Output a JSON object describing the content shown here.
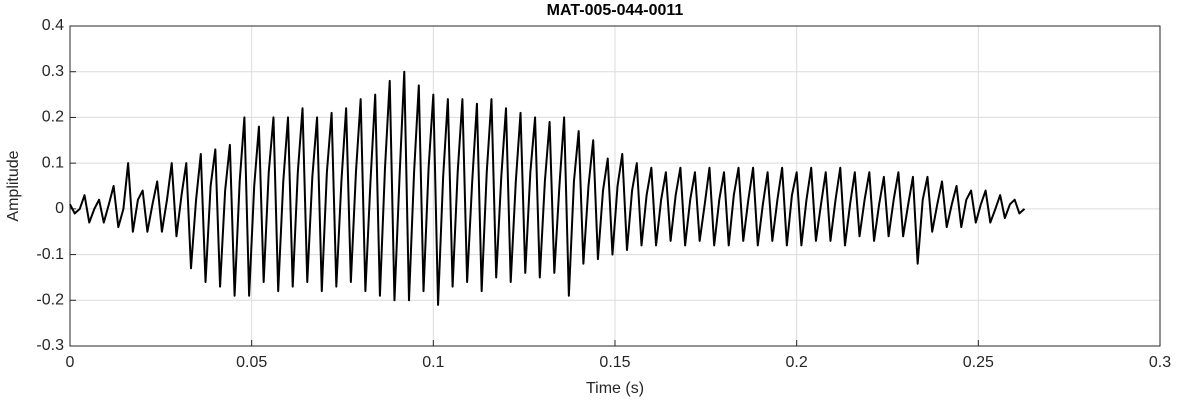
{
  "chart_data": {
    "type": "line",
    "title": "MAT-005-044-0011",
    "xlabel": "Time (s)",
    "ylabel": "Amplitude",
    "xlim": [
      0,
      0.3
    ],
    "ylim": [
      -0.3,
      0.4
    ],
    "xticks": [
      0,
      0.05,
      0.1,
      0.15,
      0.2,
      0.25,
      0.3
    ],
    "yticks": [
      -0.3,
      -0.2,
      -0.1,
      0,
      0.1,
      0.2,
      0.3,
      0.4
    ],
    "grid": true,
    "series": [
      {
        "color": "#000000",
        "x": [
          0,
          0.0013,
          0.0027,
          0.004,
          0.0053,
          0.0067,
          0.008,
          0.0093,
          0.0107,
          0.012,
          0.0133,
          0.0147,
          0.016,
          0.0173,
          0.0187,
          0.02,
          0.0213,
          0.0227,
          0.024,
          0.0253,
          0.0267,
          0.028,
          0.0293,
          0.0307,
          0.032,
          0.0333,
          0.0347,
          0.036,
          0.0373,
          0.0387,
          0.04,
          0.0413,
          0.0427,
          0.044,
          0.0453,
          0.0467,
          0.048,
          0.0493,
          0.0507,
          0.052,
          0.0533,
          0.0547,
          0.056,
          0.0573,
          0.0587,
          0.06,
          0.0613,
          0.0627,
          0.064,
          0.0653,
          0.0667,
          0.068,
          0.0693,
          0.0707,
          0.072,
          0.0733,
          0.0747,
          0.076,
          0.0773,
          0.0787,
          0.08,
          0.0813,
          0.0827,
          0.084,
          0.0853,
          0.0867,
          0.088,
          0.0893,
          0.0907,
          0.092,
          0.0933,
          0.0947,
          0.096,
          0.0973,
          0.0987,
          0.1,
          0.1013,
          0.1027,
          0.104,
          0.1053,
          0.1067,
          0.108,
          0.1093,
          0.1107,
          0.112,
          0.1133,
          0.1147,
          0.116,
          0.1173,
          0.1187,
          0.12,
          0.1213,
          0.1227,
          0.124,
          0.1253,
          0.1267,
          0.128,
          0.1293,
          0.1307,
          0.132,
          0.1333,
          0.1347,
          0.136,
          0.1373,
          0.1387,
          0.14,
          0.1413,
          0.1427,
          0.144,
          0.1453,
          0.1467,
          0.148,
          0.1493,
          0.1507,
          0.152,
          0.1533,
          0.1547,
          0.156,
          0.1573,
          0.1587,
          0.16,
          0.1613,
          0.1627,
          0.164,
          0.1653,
          0.1667,
          0.168,
          0.1693,
          0.1707,
          0.172,
          0.1733,
          0.1747,
          0.176,
          0.1773,
          0.1787,
          0.18,
          0.1813,
          0.1827,
          0.184,
          0.1853,
          0.1867,
          0.188,
          0.1893,
          0.1907,
          0.192,
          0.1933,
          0.1947,
          0.196,
          0.1973,
          0.1987,
          0.2,
          0.2013,
          0.2027,
          0.204,
          0.2053,
          0.2067,
          0.208,
          0.2093,
          0.2107,
          0.212,
          0.2133,
          0.2147,
          0.216,
          0.2173,
          0.2187,
          0.22,
          0.2213,
          0.2227,
          0.224,
          0.2253,
          0.2267,
          0.228,
          0.2293,
          0.2307,
          0.232,
          0.2333,
          0.2347,
          0.236,
          0.2373,
          0.2387,
          0.24,
          0.2413,
          0.2427,
          0.244,
          0.2453,
          0.2467,
          0.248,
          0.2493,
          0.2507,
          0.252,
          0.2533,
          0.2547,
          0.256,
          0.2573,
          0.2587,
          0.26,
          0.2613,
          0.2627
        ],
        "values": [
          0.01,
          -0.01,
          0,
          0.03,
          -0.03,
          0,
          0.02,
          -0.03,
          0.01,
          0.05,
          -0.04,
          0,
          0.1,
          -0.05,
          0.02,
          0.04,
          -0.05,
          0.01,
          0.06,
          -0.05,
          0.02,
          0.1,
          -0.06,
          0.03,
          0.1,
          -0.13,
          0.02,
          0.12,
          -0.16,
          0.05,
          0.13,
          -0.17,
          0.04,
          0.14,
          -0.19,
          0.06,
          0.2,
          -0.19,
          0.05,
          0.18,
          -0.16,
          0.08,
          0.2,
          -0.18,
          0.06,
          0.2,
          -0.17,
          0.08,
          0.22,
          -0.16,
          0.07,
          0.2,
          -0.18,
          0.08,
          0.21,
          -0.17,
          0.06,
          0.22,
          -0.16,
          0.08,
          0.24,
          -0.18,
          0.06,
          0.25,
          -0.19,
          0.09,
          0.28,
          -0.2,
          0.07,
          0.3,
          -0.2,
          0.08,
          0.27,
          -0.18,
          0.09,
          0.25,
          -0.21,
          0.07,
          0.24,
          -0.17,
          0.08,
          0.24,
          -0.16,
          0.06,
          0.23,
          -0.18,
          0.08,
          0.24,
          -0.15,
          0.07,
          0.22,
          -0.16,
          0.06,
          0.21,
          -0.14,
          0.08,
          0.2,
          -0.15,
          0.06,
          0.19,
          -0.14,
          0.05,
          0.2,
          -0.19,
          0.06,
          0.17,
          -0.12,
          0.05,
          0.15,
          -0.11,
          0.04,
          0.11,
          -0.1,
          0.05,
          0.12,
          -0.09,
          0.04,
          0.1,
          -0.08,
          0.03,
          0.09,
          -0.08,
          0.02,
          0.08,
          -0.07,
          0.03,
          0.09,
          -0.08,
          0.02,
          0.08,
          -0.07,
          0.01,
          0.09,
          -0.08,
          0.02,
          0.08,
          -0.08,
          0.03,
          0.09,
          -0.07,
          0.02,
          0.09,
          -0.08,
          0.01,
          0.08,
          -0.07,
          0.02,
          0.09,
          -0.08,
          0.03,
          0.08,
          -0.08,
          0.02,
          0.09,
          -0.07,
          0.01,
          0.08,
          -0.07,
          0.02,
          0.09,
          -0.08,
          0.01,
          0.08,
          -0.06,
          0.02,
          0.08,
          -0.07,
          0.01,
          0.07,
          -0.06,
          0.02,
          0.08,
          -0.06,
          0.01,
          0.07,
          -0.12,
          0.02,
          0.07,
          -0.05,
          0.01,
          0.06,
          -0.04,
          0.01,
          0.05,
          -0.04,
          0.02,
          0.04,
          -0.03,
          0.01,
          0.04,
          -0.03,
          0,
          0.03,
          -0.02,
          0.01,
          0.02,
          -0.01,
          0
        ]
      }
    ]
  }
}
